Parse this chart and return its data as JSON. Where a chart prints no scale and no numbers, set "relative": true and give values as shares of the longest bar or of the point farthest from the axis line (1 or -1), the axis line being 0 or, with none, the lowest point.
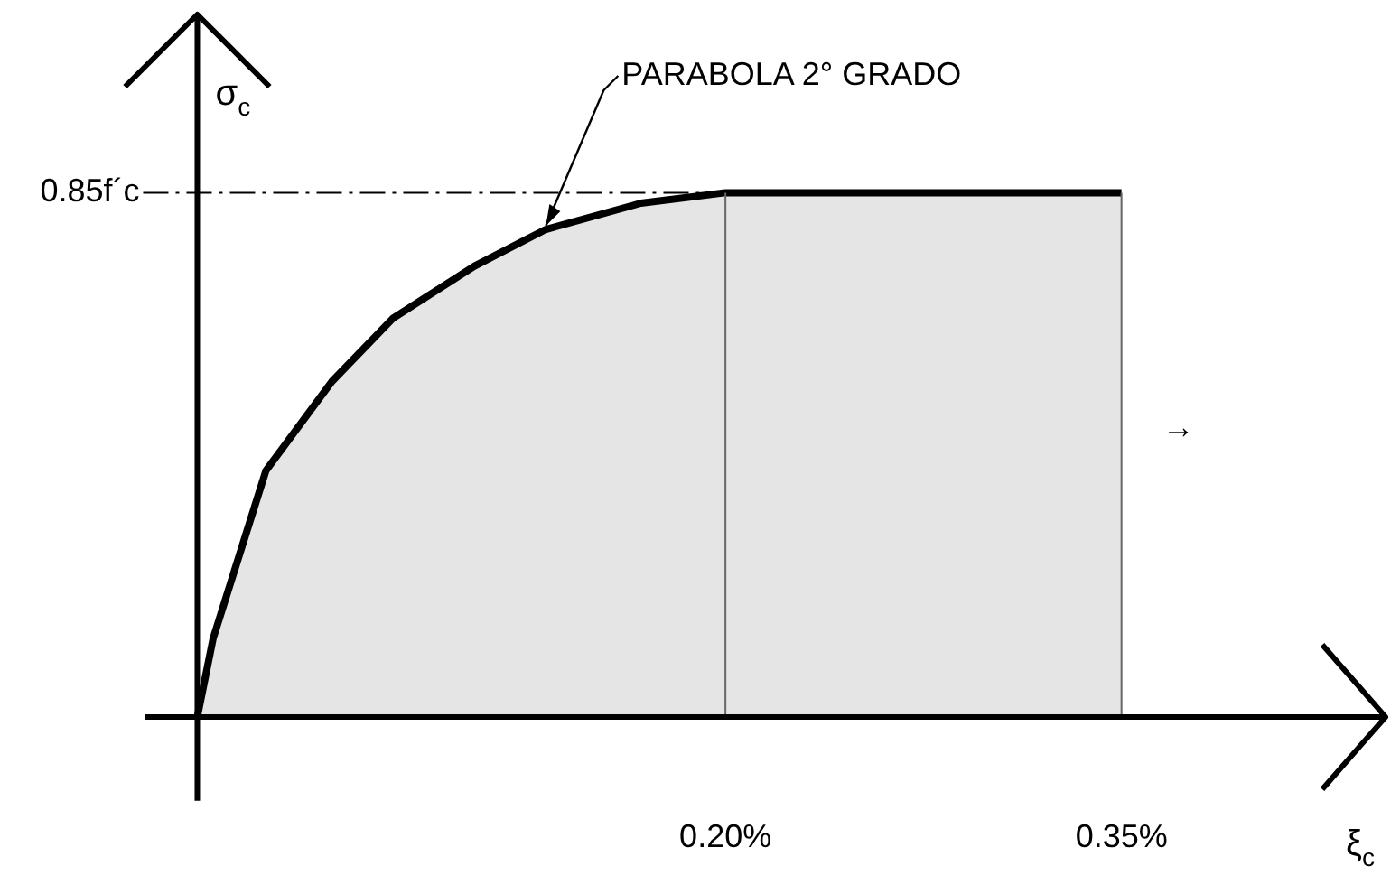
{
  "chart_data": {
    "type": "area",
    "relative": true,
    "xlabel": "ξ$_{c}$",
    "ylabel": "σ$_{c}$",
    "xlim": [
      -0.02,
      0.45
    ],
    "xticks": [
      {
        "value": 0.2,
        "label": "0.20%"
      },
      {
        "value": 0.35,
        "label": "0.35%"
      }
    ],
    "series": [
      {
        "color": "#000000",
        "x": [
          0,
          0.006,
          0.026,
          0.051,
          0.074,
          0.105,
          0.132,
          0.168,
          0.2,
          0.35
        ],
        "values": [
          0,
          0.15,
          0.47,
          0.64,
          0.76,
          0.86,
          0.93,
          0.98,
          1,
          1
        ]
      }
    ],
    "ref_lines": [
      {
        "axis": "y",
        "value": 1,
        "label": "0.85f´c",
        "line_style": "dashed"
      },
      {
        "axis": "x",
        "value": 0.2
      },
      {
        "axis": "x",
        "value": 0.35
      }
    ],
    "annotations": [
      {
        "text": "PARABOLA 2° GRADO",
        "x": 0.132,
        "y": 0.93
      },
      "→"
    ]
  }
}
